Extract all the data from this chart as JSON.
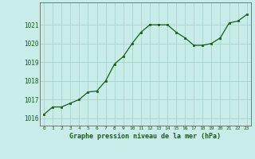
{
  "x": [
    0,
    1,
    2,
    3,
    4,
    5,
    6,
    7,
    8,
    9,
    10,
    11,
    12,
    13,
    14,
    15,
    16,
    17,
    18,
    19,
    20,
    21,
    22,
    23
  ],
  "y": [
    1016.2,
    1016.6,
    1016.6,
    1016.8,
    1017.0,
    1017.4,
    1017.45,
    1018.0,
    1018.9,
    1019.3,
    1020.0,
    1020.6,
    1021.0,
    1021.0,
    1021.0,
    1020.6,
    1020.3,
    1019.9,
    1019.9,
    1020.0,
    1020.3,
    1021.1,
    1021.2,
    1021.55
  ],
  "line_color": "#1a5c1a",
  "marker_color": "#1a5c1a",
  "background_color": "#c8ece8",
  "grid_color": "#aad4cc",
  "xlabel": "Graphe pression niveau de la mer (hPa)",
  "xlabel_color": "#1a5c1a",
  "ytick_labels": [
    1016,
    1017,
    1018,
    1019,
    1020,
    1021
  ],
  "ylim": [
    1015.6,
    1022.2
  ],
  "xlim": [
    -0.5,
    23.5
  ],
  "font_color": "#1a5c1a"
}
